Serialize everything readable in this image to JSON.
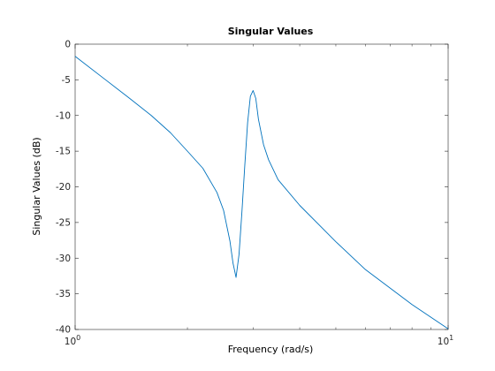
{
  "chart_data": {
    "type": "line",
    "title": "Singular Values",
    "xlabel": "Frequency (rad/s)",
    "ylabel": "Singular Values (dB)",
    "xscale": "log",
    "xlim": [
      1,
      10
    ],
    "ylim": [
      -40,
      0
    ],
    "grid": false,
    "x_ticks": [
      {
        "value": 1,
        "base": "10",
        "exp": "0"
      },
      {
        "value": 10,
        "base": "10",
        "exp": "1"
      }
    ],
    "y_ticks": [
      0,
      -5,
      -10,
      -15,
      -20,
      -25,
      -30,
      -35,
      -40
    ],
    "series": [
      {
        "color": "#0072bd",
        "x": [
          1.0,
          1.2,
          1.4,
          1.6,
          1.8,
          2.0,
          2.2,
          2.4,
          2.5,
          2.6,
          2.65,
          2.7,
          2.75,
          2.8,
          2.85,
          2.9,
          2.95,
          3.0,
          3.05,
          3.1,
          3.2,
          3.3,
          3.5,
          4.0,
          5.0,
          6.0,
          8.0,
          10.0
        ],
        "y": [
          -1.7,
          -4.9,
          -7.6,
          -10.0,
          -12.4,
          -15.0,
          -17.4,
          -20.8,
          -23.3,
          -27.6,
          -30.7,
          -32.7,
          -29.5,
          -23.5,
          -17.0,
          -11.0,
          -7.3,
          -6.5,
          -7.6,
          -10.5,
          -14.1,
          -16.2,
          -19.0,
          -22.6,
          -27.7,
          -31.6,
          -36.5,
          -39.9
        ]
      }
    ]
  }
}
